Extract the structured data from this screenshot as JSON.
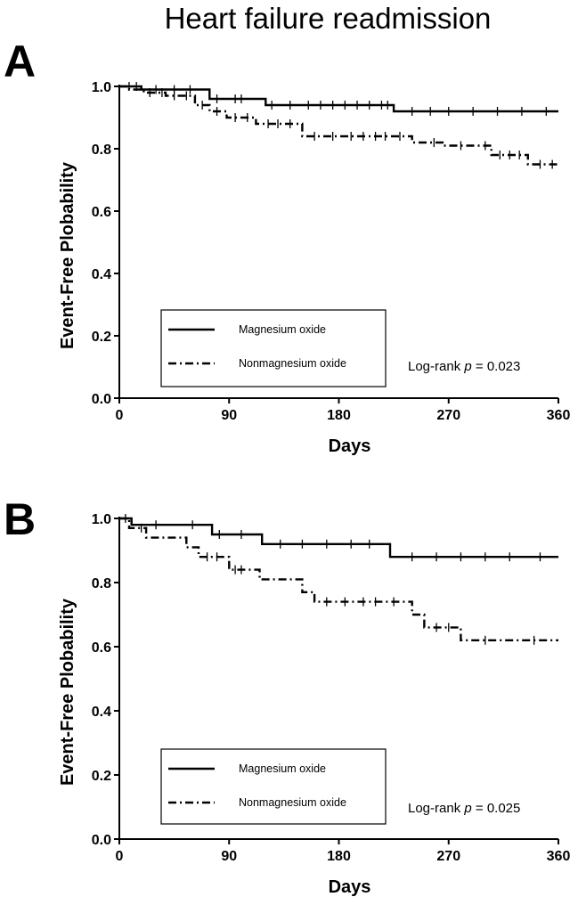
{
  "title": "Heart failure readmission",
  "chart_data": [
    {
      "type": "line",
      "panel": "A",
      "xlabel": "Days",
      "ylabel": "Event-Free Plobability",
      "xlim": [
        0,
        360
      ],
      "ylim": [
        0,
        1.0
      ],
      "xticks": [
        "0",
        "90",
        "180",
        "270",
        "360"
      ],
      "yticks": [
        "0.0",
        "0.2",
        "0.4",
        "0.6",
        "0.8",
        "1.0"
      ],
      "legend_position": "bottom-left",
      "annotation": {
        "prefix": "Log-rank ",
        "p": "p",
        "suffix": " = 0.023"
      },
      "series": [
        {
          "name": "Magnesium oxide",
          "style": "solid",
          "x": [
            0,
            18,
            18,
            74,
            74,
            120,
            120,
            225,
            225,
            360
          ],
          "y": [
            1.0,
            1.0,
            0.99,
            0.99,
            0.96,
            0.96,
            0.94,
            0.94,
            0.92,
            0.92
          ],
          "censored_x": [
            8,
            14,
            30,
            45,
            58,
            80,
            95,
            100,
            125,
            140,
            155,
            165,
            175,
            185,
            195,
            205,
            215,
            220,
            240,
            255,
            270,
            290,
            310,
            330,
            350
          ]
        },
        {
          "name": "Nonmagnesium oxide",
          "style": "dashdot",
          "x": [
            0,
            8,
            8,
            20,
            20,
            38,
            38,
            62,
            62,
            74,
            74,
            88,
            88,
            112,
            112,
            150,
            150,
            240,
            240,
            265,
            265,
            305,
            305,
            335,
            335,
            360
          ],
          "y": [
            1.0,
            1.0,
            0.99,
            0.99,
            0.98,
            0.98,
            0.97,
            0.97,
            0.94,
            0.94,
            0.92,
            0.92,
            0.9,
            0.9,
            0.88,
            0.88,
            0.84,
            0.84,
            0.82,
            0.82,
            0.81,
            0.81,
            0.78,
            0.78,
            0.75,
            0.75
          ],
          "censored_x": [
            25,
            35,
            45,
            55,
            68,
            80,
            95,
            105,
            122,
            130,
            140,
            160,
            175,
            190,
            200,
            210,
            218,
            230,
            258,
            280,
            300,
            312,
            320,
            328,
            345,
            355
          ]
        }
      ]
    },
    {
      "type": "line",
      "panel": "B",
      "xlabel": "Days",
      "ylabel": "Event-Free Plobability",
      "xlim": [
        0,
        360
      ],
      "ylim": [
        0,
        1.0
      ],
      "xticks": [
        "0",
        "90",
        "180",
        "270",
        "360"
      ],
      "yticks": [
        "0.0",
        "0.2",
        "0.4",
        "0.6",
        "0.8",
        "1.0"
      ],
      "legend_position": "bottom-left",
      "annotation": {
        "prefix": "Log-rank ",
        "p": "p",
        "suffix": " = 0.025"
      },
      "series": [
        {
          "name": "Magnesium oxide",
          "style": "solid",
          "x": [
            0,
            10,
            10,
            76,
            76,
            117,
            117,
            222,
            222,
            360
          ],
          "y": [
            1.0,
            1.0,
            0.98,
            0.98,
            0.95,
            0.95,
            0.92,
            0.92,
            0.88,
            0.88
          ],
          "censored_x": [
            5,
            30,
            60,
            82,
            100,
            132,
            150,
            170,
            190,
            205,
            240,
            260,
            280,
            300,
            320,
            345
          ]
        },
        {
          "name": "Nonmagnesium oxide",
          "style": "dashdot",
          "x": [
            0,
            8,
            8,
            22,
            22,
            55,
            55,
            65,
            65,
            90,
            90,
            115,
            115,
            150,
            150,
            160,
            160,
            240,
            240,
            250,
            250,
            280,
            280,
            360
          ],
          "y": [
            1.0,
            1.0,
            0.97,
            0.97,
            0.94,
            0.94,
            0.91,
            0.91,
            0.88,
            0.88,
            0.84,
            0.84,
            0.81,
            0.81,
            0.77,
            0.77,
            0.74,
            0.74,
            0.7,
            0.7,
            0.66,
            0.66,
            0.62,
            0.62
          ],
          "censored_x": [
            18,
            72,
            80,
            95,
            100,
            170,
            185,
            200,
            210,
            225,
            260,
            270,
            300,
            340
          ]
        }
      ]
    }
  ]
}
